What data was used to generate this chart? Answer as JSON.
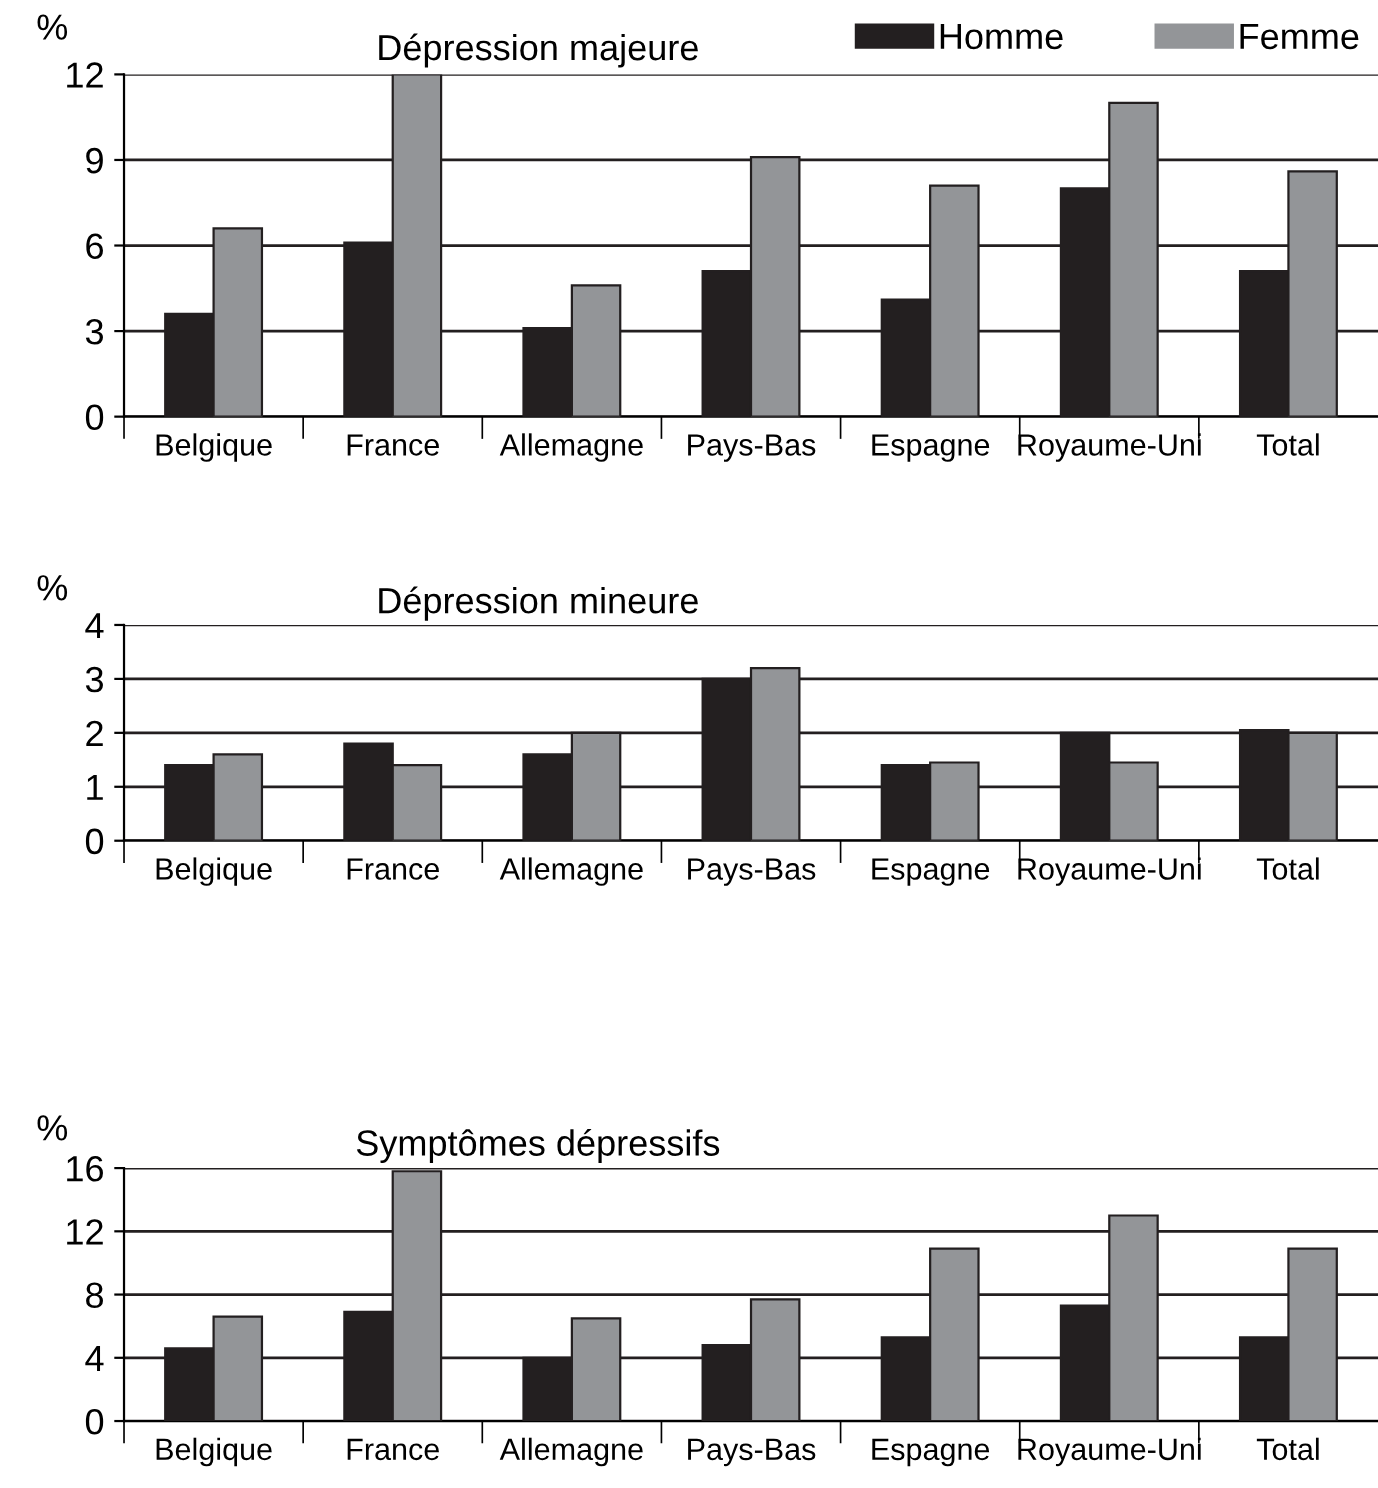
{
  "chart_data": [
    {
      "type": "bar",
      "title": "Dépression majeure",
      "ylabel": "%",
      "categories": [
        "Belgique",
        "France",
        "Allemagne",
        "Pays-Bas",
        "Espagne",
        "Royaume-Uni",
        "Total"
      ],
      "series": [
        {
          "name": "Homme",
          "color": "#231f20",
          "values": [
            3.6,
            6.1,
            3.1,
            5.1,
            4.1,
            8.0,
            5.1
          ]
        },
        {
          "name": "Femme",
          "color": "#939598",
          "values": [
            6.6,
            12.0,
            4.6,
            9.1,
            8.1,
            11.0,
            8.6
          ]
        }
      ],
      "ylim": [
        0,
        12
      ],
      "yticks": [
        0,
        3,
        6,
        9,
        12
      ],
      "grid": "y",
      "legend": "top right"
    },
    {
      "type": "bar",
      "title": "Dépression mineure",
      "ylabel": "%",
      "categories": [
        "Belgique",
        "France",
        "Allemagne",
        "Pays-Bas",
        "Espagne",
        "Royaume-Uni",
        "Total"
      ],
      "series": [
        {
          "color": "#231f20",
          "values": [
            1.4,
            1.8,
            1.6,
            3.0,
            1.4,
            2.0,
            2.05
          ]
        },
        {
          "color": "#939598",
          "values": [
            1.6,
            1.4,
            2.0,
            3.2,
            1.45,
            1.45,
            2.0
          ]
        }
      ],
      "ylim": [
        0,
        4
      ],
      "yticks": [
        0,
        1,
        2,
        3,
        4
      ],
      "grid": "y"
    },
    {
      "type": "bar",
      "title": "Symptômes dépressifs",
      "ylabel": "%",
      "categories": [
        "Belgique",
        "France",
        "Allemagne",
        "Pays-Bas",
        "Espagne",
        "Royaume-Uni",
        "Total"
      ],
      "series": [
        {
          "color": "#231f20",
          "values": [
            4.6,
            6.9,
            4.0,
            4.8,
            5.3,
            7.3,
            5.3
          ]
        },
        {
          "color": "#939598",
          "values": [
            6.6,
            15.8,
            6.5,
            7.7,
            10.9,
            13.0,
            10.9
          ]
        }
      ],
      "ylim": [
        0,
        16
      ],
      "yticks": [
        0,
        4,
        8,
        12,
        16
      ],
      "grid": "y"
    }
  ]
}
